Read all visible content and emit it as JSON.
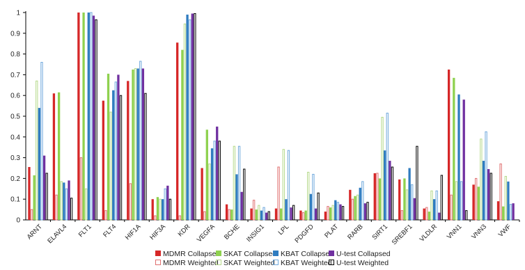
{
  "chart_data": {
    "type": "bar",
    "title": "",
    "xlabel": "",
    "ylabel": "",
    "ylim": [
      0,
      1
    ],
    "yticks": [
      "0",
      "0.1",
      "0.2",
      "0.3",
      "0.4",
      "0.5",
      "0.6",
      "0.7",
      "0.8",
      "0.9",
      "1"
    ],
    "grid": false,
    "legend_position": "bottom",
    "categories": [
      "ARNT",
      "ELAVL4",
      "FLT1",
      "FLT4",
      "HIF1A",
      "HIF3A",
      "KDR",
      "VEGFA",
      "BCHE",
      "INSIG1",
      "LPL",
      "PDGFD",
      "PLAT",
      "RARB",
      "SIRT1",
      "SREBF1",
      "VLDLR",
      "VNN1",
      "VNN3",
      "VWF"
    ],
    "series": [
      {
        "name": "MDMR Collapsed",
        "style": "filled",
        "color": "#d62728",
        "values": [
          0.255,
          0.61,
          1.0,
          0.575,
          0.67,
          0.1,
          0.855,
          0.25,
          0.075,
          0.055,
          0.055,
          0.045,
          0.04,
          0.145,
          0.225,
          0.195,
          0.055,
          0.725,
          0.17,
          0.09
        ]
      },
      {
        "name": "MDMR Weighted",
        "style": "hollow",
        "color": "#e07070",
        "values": [
          0.05,
          0.12,
          0.3,
          0.045,
          0.175,
          0.02,
          0.02,
          0.04,
          0.05,
          0.095,
          0.255,
          0.035,
          0.065,
          0.1,
          0.225,
          0.045,
          0.06,
          0.12,
          0.2,
          0.27
        ]
      },
      {
        "name": "SKAT Collapsed",
        "style": "filled",
        "color": "#8fd14f",
        "values": [
          0.215,
          0.615,
          1.0,
          0.705,
          0.725,
          0.11,
          0.82,
          0.435,
          0.05,
          0.05,
          0.055,
          0.045,
          0.06,
          0.115,
          0.2,
          0.2,
          0.04,
          0.685,
          0.16,
          0.065
        ]
      },
      {
        "name": "SKAT Weighted",
        "style": "hollow",
        "color": "#b5d98a",
        "values": [
          0.67,
          0.185,
          0.15,
          0.52,
          0.73,
          0.1,
          0.945,
          0.27,
          0.355,
          0.07,
          0.34,
          0.23,
          0.07,
          0.12,
          0.495,
          0.145,
          0.14,
          0.185,
          0.39,
          0.21
        ]
      },
      {
        "name": "KBAT Collapsed",
        "style": "filled",
        "color": "#2f7cc0",
        "values": [
          0.54,
          0.18,
          1.0,
          0.625,
          0.73,
          0.1,
          0.99,
          0.345,
          0.22,
          0.045,
          0.1,
          0.125,
          0.095,
          0.155,
          0.335,
          0.25,
          0.1,
          0.605,
          0.285,
          0.185
        ]
      },
      {
        "name": "KBAT Weighted",
        "style": "hollow",
        "color": "#6fa8dc",
        "values": [
          0.76,
          0.15,
          1.0,
          0.665,
          0.765,
          0.15,
          0.965,
          0.38,
          0.355,
          0.06,
          0.335,
          0.22,
          0.085,
          0.185,
          0.515,
          0.17,
          0.14,
          0.185,
          0.425,
          0.075
        ]
      },
      {
        "name": "U-test Collapsed",
        "style": "filled",
        "color": "#7030a0",
        "values": [
          0.31,
          0.19,
          0.985,
          0.7,
          0.73,
          0.165,
          0.995,
          0.45,
          0.135,
          0.035,
          0.06,
          0.055,
          0.075,
          0.08,
          0.285,
          0.105,
          0.035,
          0.58,
          0.245,
          0.08
        ]
      },
      {
        "name": "U-test Weighted",
        "style": "hollow",
        "color": "#000000",
        "values": [
          0.225,
          0.105,
          0.965,
          0.6,
          0.61,
          0.1,
          0.995,
          0.38,
          0.245,
          0.04,
          0.07,
          0.13,
          0.065,
          0.085,
          0.255,
          0.355,
          0.215,
          0.045,
          0.225,
          0.0
        ]
      }
    ]
  }
}
